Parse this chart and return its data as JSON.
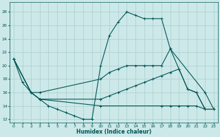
{
  "xlabel": "Humidex (Indice chaleur)",
  "xlim": [
    -0.5,
    23.5
  ],
  "ylim": [
    11.5,
    29.5
  ],
  "yticks": [
    12,
    14,
    16,
    18,
    20,
    22,
    24,
    26,
    28
  ],
  "xtick_labels": [
    "0",
    "1",
    "2",
    "3",
    "4",
    "5",
    "6",
    "7",
    "8",
    "9",
    "10",
    "11",
    "12",
    "13",
    "14",
    "15",
    "16",
    "17",
    "18",
    "19",
    "20",
    "21",
    "22",
    "23"
  ],
  "xtick_vals": [
    0,
    1,
    2,
    3,
    4,
    5,
    6,
    7,
    8,
    9,
    10,
    11,
    12,
    13,
    14,
    15,
    16,
    17,
    18,
    19,
    20,
    21,
    22,
    23
  ],
  "bg_color": "#cce8e8",
  "line_color": "#005555",
  "grid_color": "#aacfcf",
  "series": [
    {
      "x": [
        0,
        1,
        2,
        3,
        4,
        5,
        6,
        7,
        8,
        9,
        10,
        11,
        12,
        13,
        14,
        15,
        16,
        17,
        18,
        22,
        23
      ],
      "y": [
        21,
        17.5,
        16,
        15,
        14,
        13.5,
        13,
        12.5,
        12,
        12,
        20,
        24.5,
        26.5,
        28,
        27.5,
        27,
        27,
        27,
        22.5,
        16,
        13.5
      ]
    },
    {
      "x": [
        0,
        2,
        3,
        10,
        11,
        12,
        13,
        14,
        15,
        16,
        17,
        18,
        19,
        20,
        21,
        22,
        23
      ],
      "y": [
        21,
        16,
        16,
        18,
        19,
        19.5,
        20,
        20,
        20,
        20,
        20,
        22.5,
        19.5,
        16.5,
        16,
        13.5,
        13.5
      ]
    },
    {
      "x": [
        0,
        2,
        3,
        10,
        11,
        12,
        13,
        14,
        15,
        16,
        17,
        18,
        19,
        20,
        21,
        22,
        23
      ],
      "y": [
        21,
        16,
        15,
        15,
        15.5,
        16,
        16.5,
        17,
        17.5,
        18,
        18.5,
        19,
        19.5,
        16.5,
        16,
        13.5,
        13.5
      ]
    },
    {
      "x": [
        0,
        2,
        3,
        10,
        17,
        18,
        19,
        20,
        21,
        22,
        23
      ],
      "y": [
        21,
        16,
        15,
        14,
        14,
        14,
        14,
        14,
        14,
        13.5,
        13.5
      ]
    }
  ]
}
